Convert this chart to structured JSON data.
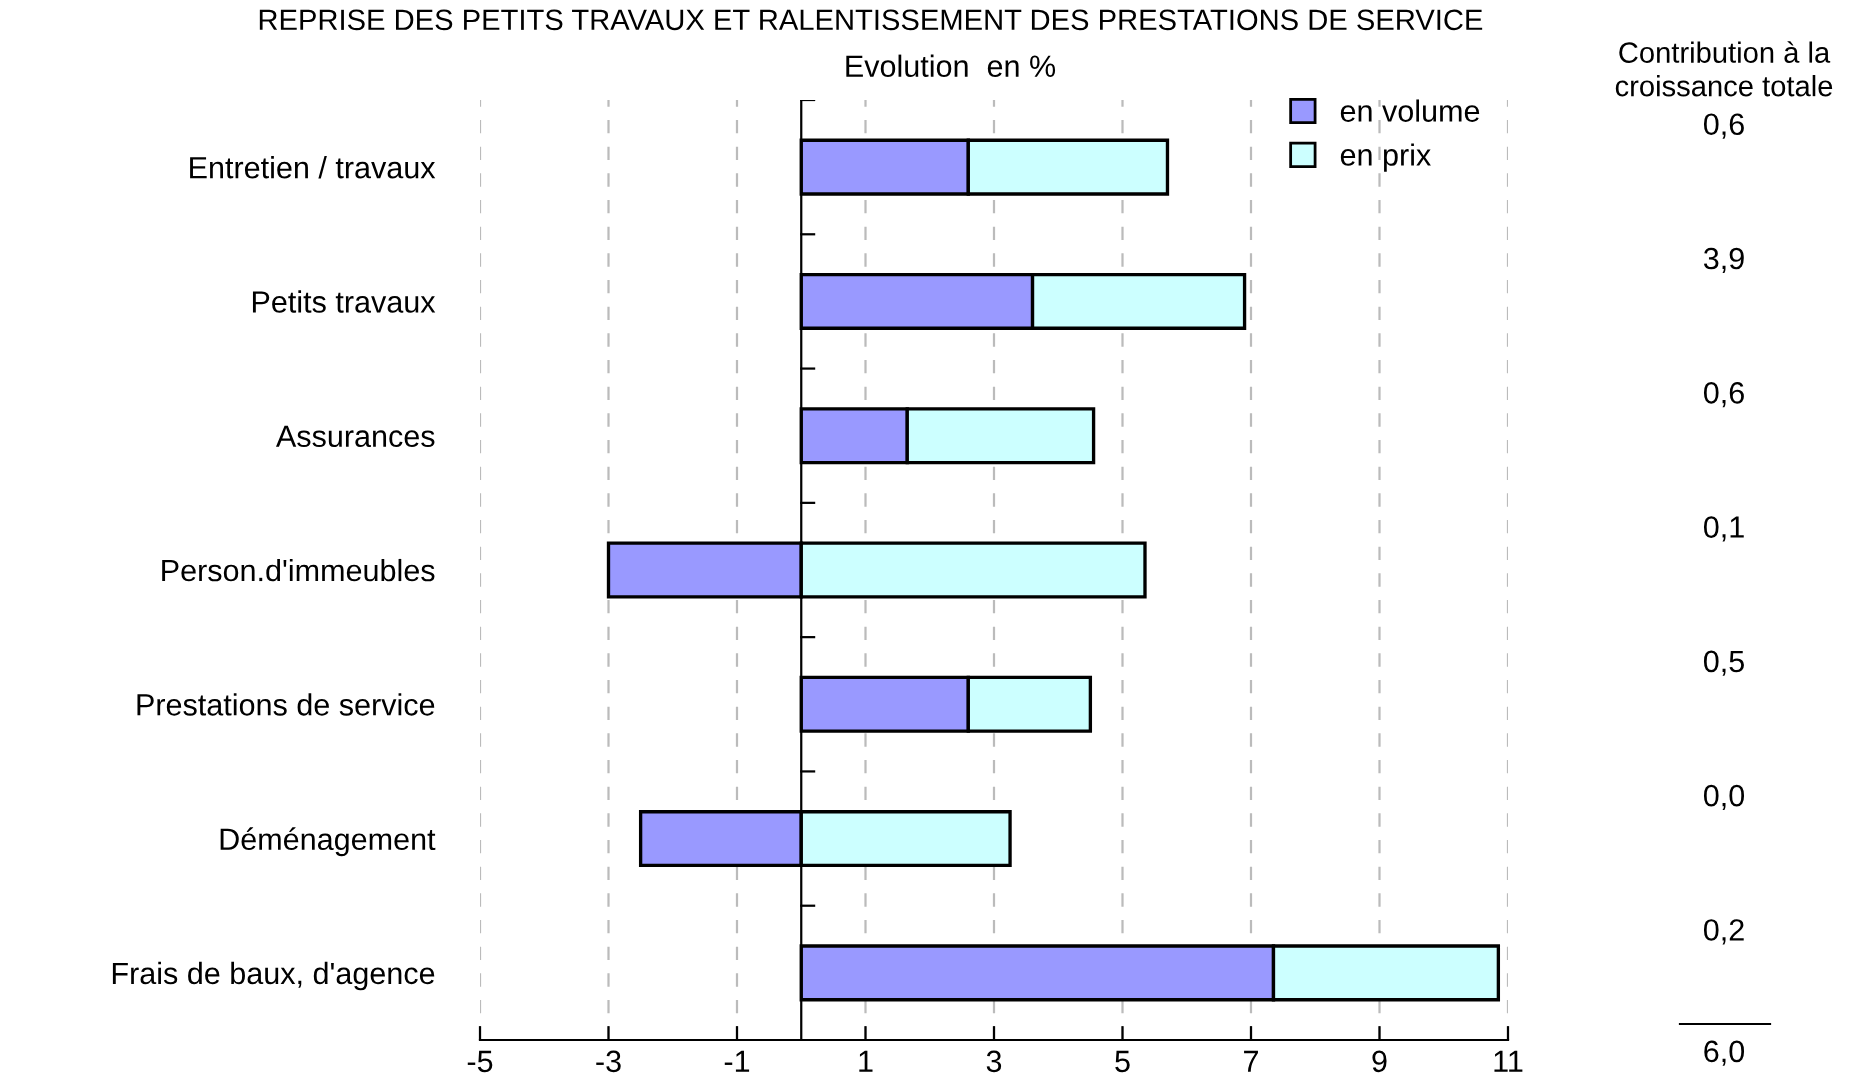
{
  "chart_data": {
    "type": "bar",
    "orientation": "horizontal",
    "stacked": true,
    "title": "REPRISE DES PETITS TRAVAUX ET RALENTISSEMENT DES PRESTATIONS DE SERVICE",
    "subtitle": "Evolution  en %",
    "categories": [
      "Entretien / travaux",
      "Petits travaux",
      "Assurances",
      "Person.d'immeubles",
      "Prestations de service",
      "Déménagement",
      "Frais de baux, d'agence"
    ],
    "series": [
      {
        "name": "en volume",
        "color": "#9999ff",
        "values": [
          2.6,
          3.6,
          1.65,
          -3.0,
          2.6,
          -2.5,
          7.35
        ]
      },
      {
        "name": "en prix",
        "color": "#ccffff",
        "values": [
          3.1,
          3.3,
          2.9,
          5.35,
          1.9,
          3.25,
          3.5
        ]
      }
    ],
    "xlim": [
      -5,
      11
    ],
    "xticks": [
      -5,
      -3,
      -1,
      1,
      3,
      5,
      7,
      9,
      11
    ],
    "grid": "x",
    "legend": "top right",
    "annotations": [
      "Contribution à la croissance totale",
      "0,6",
      "3,9",
      "0,6",
      "0,1",
      "0,5",
      "0,0",
      "0,2",
      "6,0"
    ]
  }
}
